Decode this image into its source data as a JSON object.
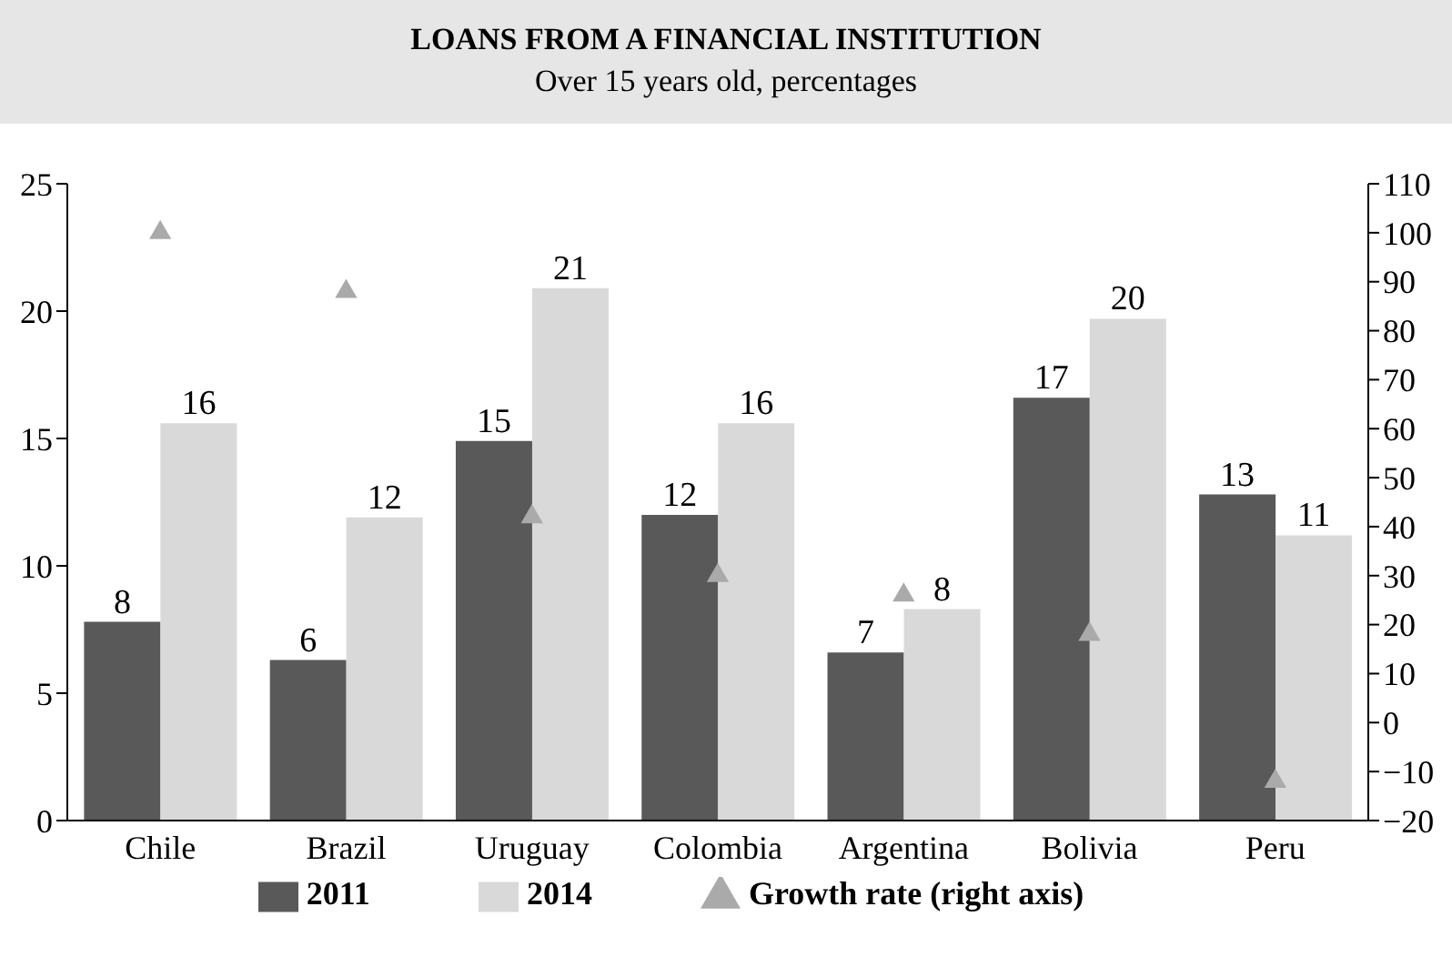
{
  "chart_data": {
    "type": "bar",
    "title": "LOANS FROM A FINANCIAL INSTITUTION",
    "subtitle": "Over 15 years old, percentages",
    "categories": [
      "Chile",
      "Brazil",
      "Uruguay",
      "Colombia",
      "Argentina",
      "Bolivia",
      "Peru"
    ],
    "series": [
      {
        "name": "2011",
        "color": "#595959",
        "values": [
          7.8,
          6.3,
          14.9,
          12.0,
          6.6,
          16.6,
          12.8
        ],
        "value_labels": [
          "8",
          "6",
          "15",
          "12",
          "7",
          "17",
          "13"
        ]
      },
      {
        "name": "2014",
        "color": "#d9d9d9",
        "values": [
          15.6,
          11.9,
          20.9,
          15.6,
          8.3,
          19.7,
          11.2
        ],
        "value_labels": [
          "16",
          "12",
          "21",
          "16",
          "8",
          "20",
          "11"
        ]
      },
      {
        "name": "Growth rate (right axis)",
        "type": "scatter",
        "axis": "y2",
        "marker": "triangle",
        "color": "#aaaaaa",
        "values": [
          100,
          88,
          42,
          30,
          26,
          18,
          -12
        ]
      }
    ],
    "ylim": [
      0,
      25
    ],
    "yticks": [
      0,
      5,
      10,
      15,
      20,
      25
    ],
    "y2lim": [
      -20,
      110
    ],
    "y2ticks": [
      {
        "value": -20,
        "label": "−20"
      },
      {
        "value": -10,
        "label": "−10"
      },
      0,
      10,
      20,
      30,
      40,
      50,
      60,
      70,
      80,
      90,
      100,
      110
    ],
    "grid": false,
    "legend": "bottom"
  }
}
